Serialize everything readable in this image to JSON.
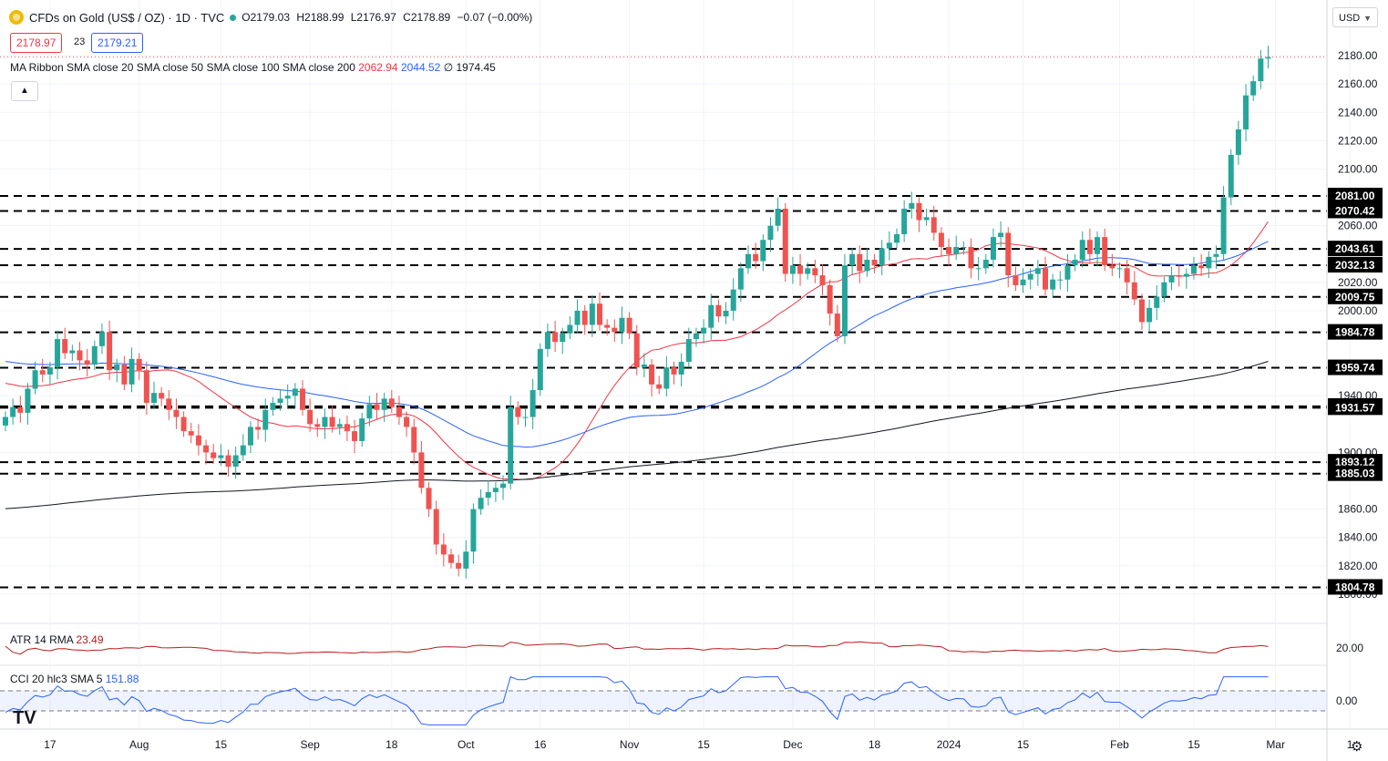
{
  "header": {
    "symbol": "CFDs on Gold (US$ / OZ) · 1D · TVC",
    "open": "O2179.03",
    "high": "H2188.99",
    "low": "L2176.97",
    "close": "C2178.89",
    "change": "−0.07 (−0.00%)",
    "bid": "2178.97",
    "spread": "23",
    "ask": "2179.21"
  },
  "ma_ribbon": {
    "label": "MA Ribbon SMA close 20 SMA close 50 SMA close 100 SMA close 200",
    "v20": "2062.94",
    "v50": "2044.52",
    "v200": "∅ 1974.45"
  },
  "atr": {
    "label": "ATR 14 RMA",
    "value": "23.49"
  },
  "cci": {
    "label": "CCI 20 hlc3 SMA 5",
    "value": "151.88"
  },
  "currency": "USD",
  "colors": {
    "up": "#26a69a",
    "down": "#ef5350",
    "sma20": "#f23645",
    "sma50": "#2962ff",
    "sma200": "#131722",
    "atr": "#b71c1c",
    "cci": "#2962ff"
  },
  "chart_data": {
    "type": "candlestick",
    "symbol": "CFDs on Gold (US$ / OZ)",
    "interval": "1D",
    "ylim": [
      1780,
      2200
    ],
    "y_ticks": [
      1800,
      1820,
      1840,
      1860,
      1900,
      1940,
      2000,
      2020,
      2060,
      2100,
      2120,
      2140,
      2160,
      2180
    ],
    "x_ticks": [
      {
        "label": "17",
        "bar": 6
      },
      {
        "label": "Aug",
        "bar": 18
      },
      {
        "label": "15",
        "bar": 29
      },
      {
        "label": "Sep",
        "bar": 41
      },
      {
        "label": "18",
        "bar": 52
      },
      {
        "label": "Oct",
        "bar": 62
      },
      {
        "label": "16",
        "bar": 72
      },
      {
        "label": "Nov",
        "bar": 84
      },
      {
        "label": "15",
        "bar": 94
      },
      {
        "label": "Dec",
        "bar": 106
      },
      {
        "label": "18",
        "bar": 117
      },
      {
        "label": "2024",
        "bar": 127
      },
      {
        "label": "15",
        "bar": 137
      },
      {
        "label": "Feb",
        "bar": 150
      },
      {
        "label": "15",
        "bar": 160
      },
      {
        "label": "Mar",
        "bar": 171
      },
      {
        "label": "1",
        "bar": 181
      }
    ],
    "levels": [
      2081.0,
      2070.42,
      2043.61,
      2032.13,
      2009.75,
      1984.78,
      1959.74,
      1932.49,
      1931.57,
      1893.12,
      1885.03,
      1804.78
    ],
    "closes": [
      1925,
      1932,
      1928,
      1945,
      1958,
      1955,
      1960,
      1980,
      1970,
      1972,
      1965,
      1962,
      1975,
      1985,
      1958,
      1962,
      1948,
      1966,
      1958,
      1935,
      1942,
      1938,
      1930,
      1925,
      1915,
      1912,
      1905,
      1900,
      1896,
      1898,
      1890,
      1898,
      1905,
      1918,
      1916,
      1930,
      1935,
      1938,
      1940,
      1945,
      1930,
      1920,
      1918,
      1925,
      1918,
      1920,
      1915,
      1908,
      1924,
      1934,
      1930,
      1938,
      1932,
      1925,
      1918,
      1900,
      1875,
      1860,
      1835,
      1828,
      1822,
      1818,
      1830,
      1860,
      1868,
      1872,
      1875,
      1878,
      1932,
      1925,
      1925,
      1944,
      1973,
      1985,
      1978,
      1984,
      1990,
      2000,
      1990,
      2005,
      1990,
      1988,
      1985,
      1995,
      1984,
      1960,
      1962,
      1948,
      1945,
      1960,
      1955,
      1964,
      1980,
      1984,
      1988,
      2004,
      1996,
      2000,
      2015,
      2030,
      2040,
      2035,
      2050,
      2060,
      2072,
      2026,
      2032,
      2026,
      2030,
      2025,
      2018,
      1998,
      1982,
      2032,
      2040,
      2028,
      2036,
      2032,
      2044,
      2048,
      2054,
      2072,
      2076,
      2064,
      2066,
      2055,
      2045,
      2040,
      2045,
      2045,
      2030,
      2030,
      2036,
      2052,
      2055,
      2025,
      2018,
      2022,
      2026,
      2030,
      2015,
      2022,
      2022,
      2032,
      2036,
      2050,
      2040,
      2052,
      2032,
      2030,
      2030,
      2020,
      2008,
      1992,
      2002,
      2010,
      2020,
      2025,
      2024,
      2026,
      2032,
      2030,
      2038,
      2040,
      2080,
      2110,
      2128,
      2152,
      2162,
      2178,
      2179
    ]
  }
}
